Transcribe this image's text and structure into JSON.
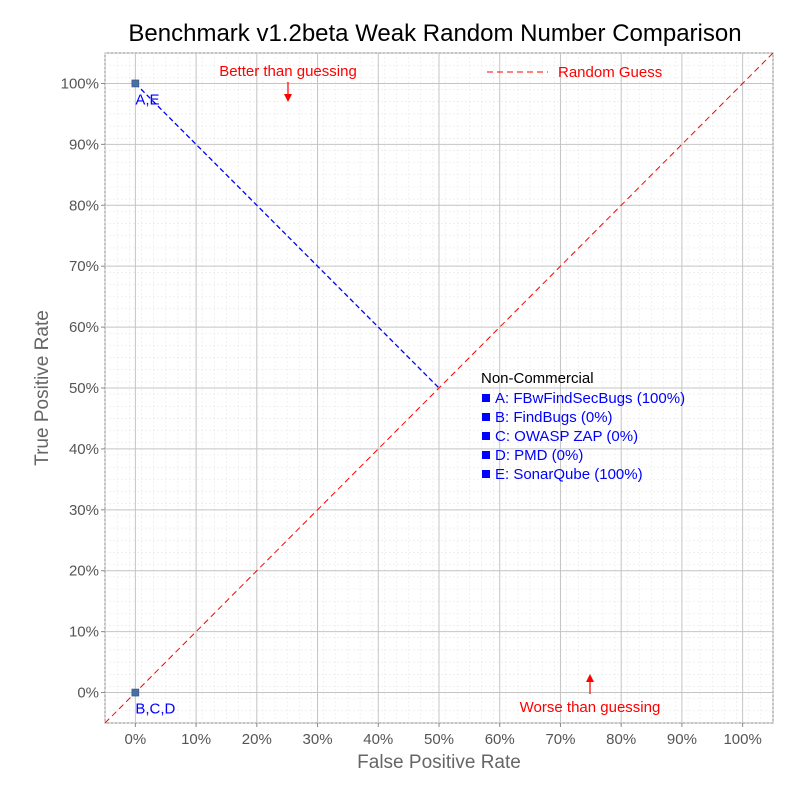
{
  "chart_data": {
    "type": "scatter",
    "title": "Benchmark v1.2beta Weak Random Number Comparison",
    "xlabel": "False Positive Rate",
    "ylabel": "True Positive Rate",
    "xlim": [
      -5,
      105
    ],
    "ylim": [
      -5,
      105
    ],
    "grid": true,
    "x_ticks": [
      "0%",
      "10%",
      "20%",
      "30%",
      "40%",
      "50%",
      "60%",
      "70%",
      "80%",
      "90%",
      "100%"
    ],
    "y_ticks": [
      "0%",
      "10%",
      "20%",
      "30%",
      "40%",
      "50%",
      "60%",
      "70%",
      "80%",
      "90%",
      "100%"
    ],
    "points": [
      {
        "label": "A,E",
        "x": 0,
        "y": 100
      },
      {
        "label": "B,C,D",
        "x": 0,
        "y": 0
      }
    ],
    "random_guess_line": {
      "name": "Random Guess",
      "from": [
        -5,
        -5
      ],
      "to": [
        105,
        105
      ],
      "color": "#ff0000"
    },
    "average_line": {
      "from": [
        0,
        100
      ],
      "to": [
        50,
        50
      ],
      "color": "#0000ff"
    },
    "annotations": {
      "better": "Better than guessing",
      "worse": "Worse than guessing"
    },
    "legend": {
      "placement": "top-right",
      "random_guess_label": "Random Guess",
      "group_title": "Non-Commercial",
      "items": [
        "A: FBwFindSecBugs (100%)",
        "B: FindBugs (0%)",
        "C: OWASP ZAP (0%)",
        "D: PMD (0%)",
        "E: SonarQube (100%)"
      ]
    },
    "colors": {
      "random_line": "#ff0000",
      "average_line": "#0000ff",
      "marker": "#4a6fa5",
      "legend_text": "#0000ff",
      "annotation": "#ff0000"
    }
  }
}
